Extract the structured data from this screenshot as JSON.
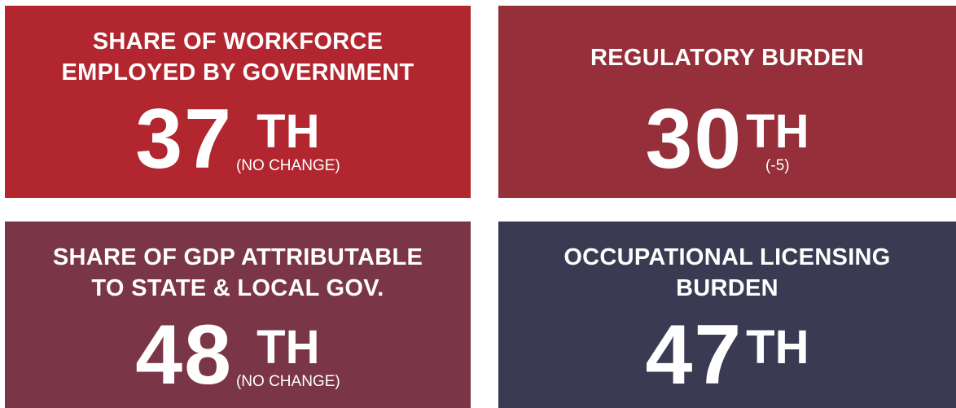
{
  "tiles": [
    {
      "title": [
        "SHARE OF WORKFORCE",
        "EMPLOYED BY GOVERNMENT"
      ],
      "rank": "37",
      "suffix": "TH",
      "change": "(NO CHANGE)",
      "color": "#b2262f"
    },
    {
      "title": [
        "REGULATORY BURDEN"
      ],
      "rank": "30",
      "suffix": "TH",
      "change": "(-5)",
      "color": "#952f39"
    },
    {
      "title": [
        "SHARE OF GDP ATTRIBUTABLE",
        "TO STATE & LOCAL GOV."
      ],
      "rank": "48",
      "suffix": "TH",
      "change": "(NO CHANGE)",
      "color": "#7a3646"
    },
    {
      "title": [
        "OCCUPATIONAL LICENSING",
        "BURDEN"
      ],
      "rank": "47",
      "suffix": "TH",
      "color": "#3a3b52"
    }
  ]
}
